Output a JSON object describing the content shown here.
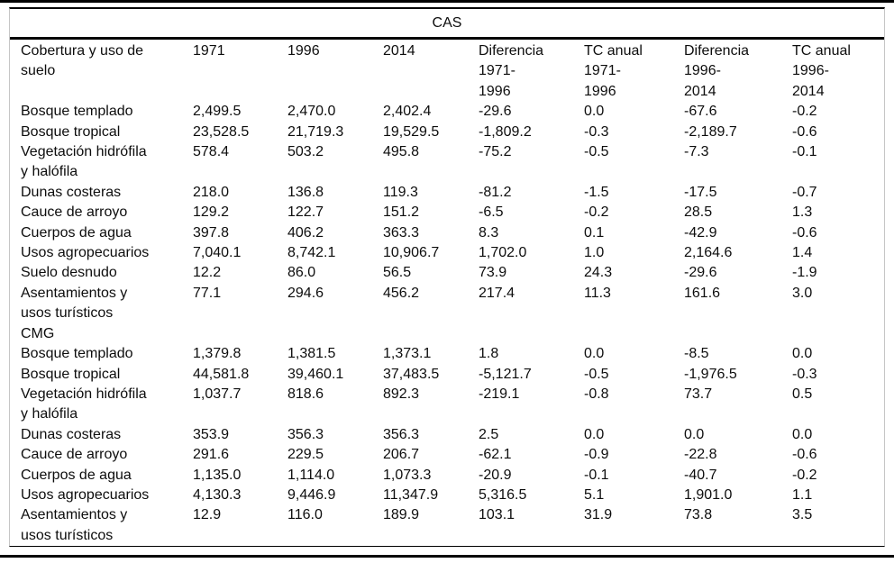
{
  "table": {
    "title": "CAS",
    "colors": {
      "rule": "#000000",
      "side_rule": "#c6c6c6",
      "text": "#0d0d0d",
      "background": "#ffffff"
    },
    "columns": [
      {
        "label": "Cobertura y uso de\nsuelo"
      },
      {
        "label": "1971"
      },
      {
        "label": "1996"
      },
      {
        "label": "2014"
      },
      {
        "label": "Diferencia\n1971-\n1996"
      },
      {
        "label": "TC anual\n1971-\n1996"
      },
      {
        "label": "Diferencia\n1996-\n2014"
      },
      {
        "label": "TC anual\n1996-\n2014"
      }
    ],
    "sections": [
      {
        "label": "",
        "rows": [
          {
            "label": "Bosque templado",
            "values": [
              "2,499.5",
              "2,470.0",
              "2,402.4",
              "-29.6",
              "0.0",
              "-67.6",
              "-0.2"
            ]
          },
          {
            "label": "Bosque tropical",
            "values": [
              "23,528.5",
              "21,719.3",
              "19,529.5",
              "-1,809.2",
              "-0.3",
              "-2,189.7",
              "-0.6"
            ]
          },
          {
            "label": "Vegetación hidrófila\ny halófila",
            "values": [
              "578.4",
              "503.2",
              "495.8",
              "-75.2",
              "-0.5",
              "-7.3",
              "-0.1"
            ]
          },
          {
            "label": "Dunas costeras",
            "values": [
              "218.0",
              "136.8",
              "119.3",
              "-81.2",
              "-1.5",
              "-17.5",
              "-0.7"
            ]
          },
          {
            "label": "Cauce de arroyo",
            "values": [
              "129.2",
              "122.7",
              "151.2",
              "-6.5",
              "-0.2",
              "28.5",
              "1.3"
            ]
          },
          {
            "label": "Cuerpos de agua",
            "values": [
              "397.8",
              "406.2",
              "363.3",
              "8.3",
              "0.1",
              "-42.9",
              "-0.6"
            ]
          },
          {
            "label": "Usos agropecuarios",
            "values": [
              "7,040.1",
              "8,742.1",
              "10,906.7",
              "1,702.0",
              "1.0",
              "2,164.6",
              "1.4"
            ]
          },
          {
            "label": "Suelo desnudo",
            "values": [
              "12.2",
              "86.0",
              "56.5",
              "73.9",
              "24.3",
              "-29.6",
              "-1.9"
            ]
          },
          {
            "label": "Asentamientos y\nusos turísticos",
            "values": [
              "77.1",
              "294.6",
              "456.2",
              "217.4",
              "11.3",
              "161.6",
              "3.0"
            ]
          }
        ]
      },
      {
        "label": "CMG",
        "rows": [
          {
            "label": "Bosque templado",
            "values": [
              "1,379.8",
              "1,381.5",
              "1,373.1",
              "1.8",
              "0.0",
              "-8.5",
              "0.0"
            ]
          },
          {
            "label": "Bosque tropical",
            "values": [
              "44,581.8",
              "39,460.1",
              "37,483.5",
              "-5,121.7",
              "-0.5",
              "-1,976.5",
              "-0.3"
            ]
          },
          {
            "label": "Vegetación hidrófila\ny halófila",
            "values": [
              "1,037.7",
              "818.6",
              "892.3",
              "-219.1",
              "-0.8",
              "73.7",
              "0.5"
            ]
          },
          {
            "label": "Dunas costeras",
            "values": [
              "353.9",
              "356.3",
              "356.3",
              "2.5",
              "0.0",
              "0.0",
              "0.0"
            ]
          },
          {
            "label": "Cauce de arroyo",
            "values": [
              "291.6",
              "229.5",
              "206.7",
              "-62.1",
              "-0.9",
              "-22.8",
              "-0.6"
            ]
          },
          {
            "label": "Cuerpos de agua",
            "values": [
              "1,135.0",
              "1,114.0",
              "1,073.3",
              "-20.9",
              "-0.1",
              "-40.7",
              "-0.2"
            ]
          },
          {
            "label": "Usos agropecuarios",
            "values": [
              "4,130.3",
              "9,446.9",
              "11,347.9",
              "5,316.5",
              "5.1",
              "1,901.0",
              "1.1"
            ]
          },
          {
            "label": "Asentamientos y\nusos turísticos",
            "values": [
              "12.9",
              "116.0",
              "189.9",
              "103.1",
              "31.9",
              "73.8",
              "3.5"
            ]
          }
        ]
      }
    ]
  }
}
